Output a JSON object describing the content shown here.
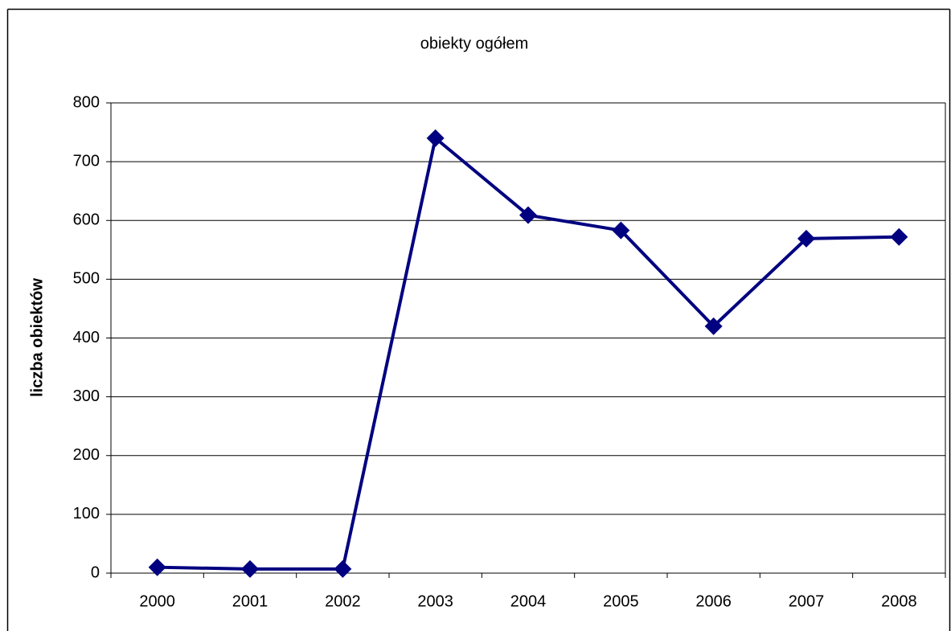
{
  "chart_data": {
    "type": "line",
    "title": "obiekty ogółem",
    "y_label": "liczba obiektów",
    "categories": [
      "2000",
      "2001",
      "2002",
      "2003",
      "2004",
      "2005",
      "2006",
      "2007",
      "2008"
    ],
    "values": [
      10,
      7,
      7,
      740,
      609,
      583,
      420,
      569,
      572
    ],
    "color": "#000080",
    "marker": "diamond",
    "ylim": [
      0,
      800
    ],
    "yticks": [
      0,
      100,
      200,
      300,
      400,
      500,
      600,
      700,
      800
    ],
    "grid": true
  }
}
